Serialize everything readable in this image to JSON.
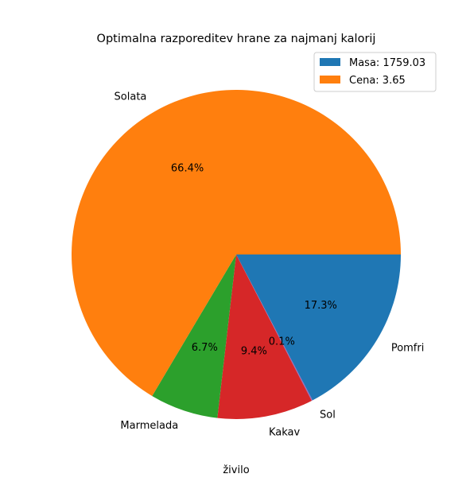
{
  "chart_data": {
    "type": "pie",
    "title": "Optimalna razporeditev hrane za najmanj kalorij",
    "xlabel": "živilo",
    "slices": [
      {
        "label": "Pomfri",
        "value": 17.3,
        "pct_label": "17.3%",
        "color": "#1f77b4"
      },
      {
        "label": "Sol",
        "value": 0.1,
        "pct_label": "0.1%",
        "color": "#9467bd"
      },
      {
        "label": "Kakav",
        "value": 9.4,
        "pct_label": "9.4%",
        "color": "#d62728"
      },
      {
        "label": "Marmelada",
        "value": 6.7,
        "pct_label": "6.7%",
        "color": "#2ca02c"
      },
      {
        "label": "Solata",
        "value": 66.4,
        "pct_label": "66.4%",
        "color": "#ff7f0e"
      }
    ],
    "start_angle_deg": 0,
    "direction": "clockwise",
    "legend": {
      "position": "top-right",
      "entries": [
        {
          "text": "Masa: 1759.03",
          "color": "#1f77b4"
        },
        {
          "text": "Cena: 3.65",
          "color": "#ff7f0e"
        }
      ]
    }
  }
}
